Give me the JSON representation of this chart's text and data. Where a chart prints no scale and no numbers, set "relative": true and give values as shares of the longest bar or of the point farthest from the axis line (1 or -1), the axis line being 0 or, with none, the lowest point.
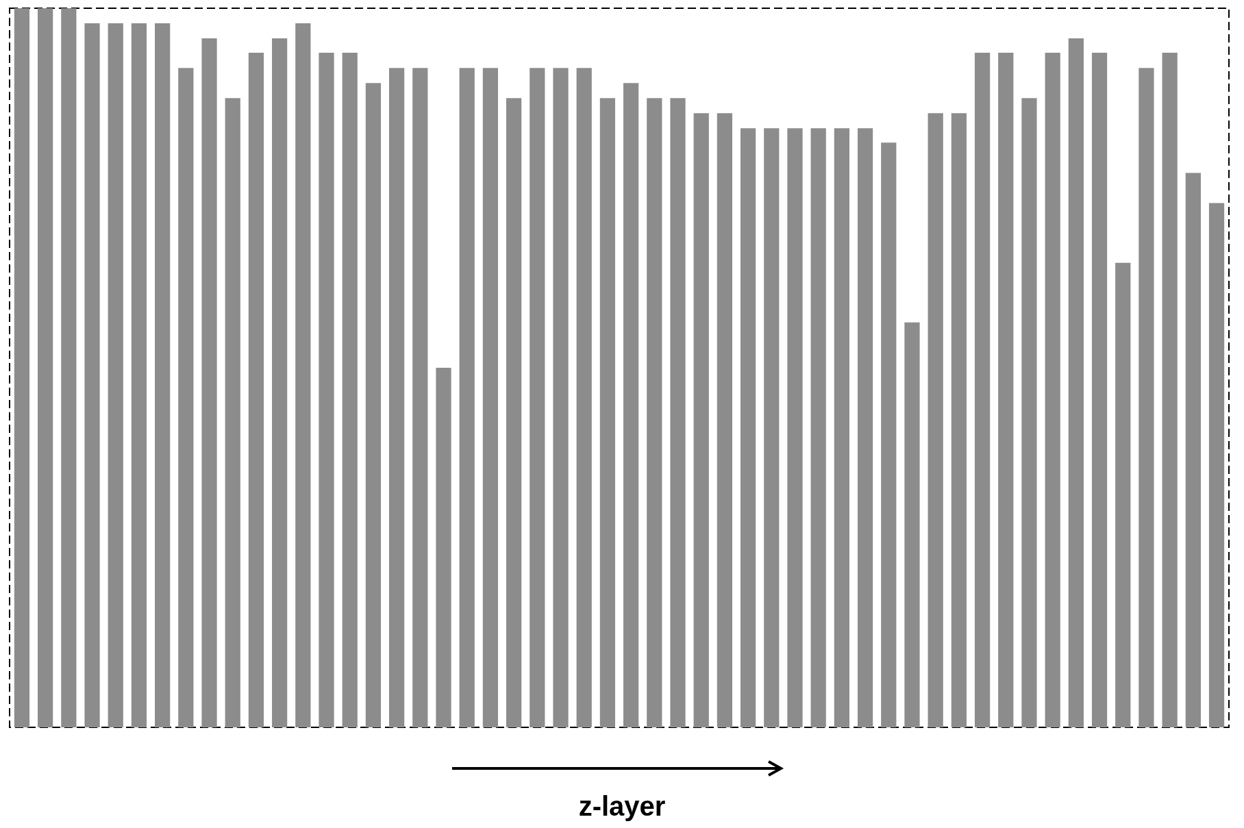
{
  "chart_data": {
    "type": "bar",
    "relative": true,
    "xlabel": "z-layer",
    "color": "#8c8c8c",
    "categories": [
      null,
      null,
      null,
      null,
      null,
      null,
      null,
      null,
      null,
      null,
      null,
      null,
      null,
      null,
      null,
      null,
      null,
      null,
      null,
      null,
      null,
      null,
      null,
      null,
      null,
      null,
      null,
      null,
      null,
      null,
      null,
      null,
      null,
      null,
      null,
      null,
      null,
      null,
      null,
      null,
      null,
      null,
      null,
      null,
      null,
      null,
      null,
      null,
      null,
      null,
      null,
      null
    ],
    "values": [
      1,
      1,
      1,
      0.979,
      0.979,
      0.979,
      0.979,
      0.917,
      0.958,
      0.875,
      0.938,
      0.958,
      0.979,
      0.938,
      0.938,
      0.896,
      0.917,
      0.917,
      0.5,
      0.917,
      0.917,
      0.875,
      0.917,
      0.917,
      0.917,
      0.875,
      0.896,
      0.875,
      0.875,
      0.854,
      0.854,
      0.833,
      0.833,
      0.833,
      0.833,
      0.833,
      0.833,
      0.813,
      0.563,
      0.854,
      0.854,
      0.938,
      0.938,
      0.875,
      0.938,
      0.958,
      0.938,
      0.646,
      0.917,
      0.938,
      0.771,
      0.729
    ]
  }
}
